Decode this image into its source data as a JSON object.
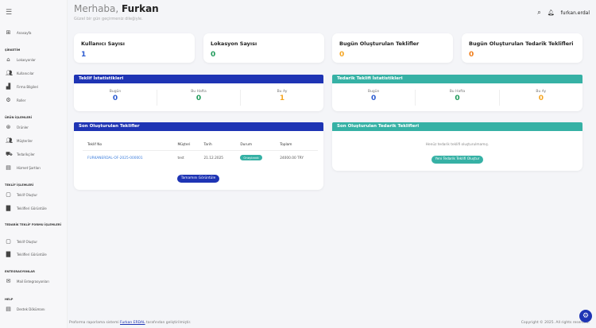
{
  "sidebar": {
    "sections": [
      {
        "title": "",
        "items": [
          {
            "label": "Anasayfa",
            "icon": "grid-icon"
          }
        ]
      },
      {
        "title": "ŞİRKETİM",
        "items": [
          {
            "label": "Lokasyonlar",
            "icon": "warehouse-icon"
          },
          {
            "label": "Kullanıcılar",
            "icon": "users-icon"
          },
          {
            "label": "Firma Bilgileri",
            "icon": "factory-icon"
          },
          {
            "label": "Roller",
            "icon": "gears-icon"
          }
        ]
      },
      {
        "title": "ÜRÜN İŞLEMLERİ",
        "items": [
          {
            "label": "Ürünler",
            "icon": "product-icon"
          },
          {
            "label": "Müşteriler",
            "icon": "users-icon"
          },
          {
            "label": "Tedarikçiler",
            "icon": "truck-icon"
          },
          {
            "label": "Hizmet Şartları",
            "icon": "document-icon"
          }
        ]
      },
      {
        "title": "TEKLİF İŞLEMLERİ",
        "items": [
          {
            "label": "Teklif Oluştur",
            "icon": "file-add-icon"
          },
          {
            "label": "Teklifleri Görüntüle",
            "icon": "files-icon"
          }
        ]
      },
      {
        "title": "TEDARİK TEKLİF FORMU İŞLEMLERİ",
        "items": [
          {
            "label": "Teklif Oluştur",
            "icon": "file-add-icon"
          },
          {
            "label": "Teklifleri Görüntüle",
            "icon": "files-icon"
          }
        ]
      },
      {
        "title": "ENTEGRASYONLAR",
        "items": [
          {
            "label": "Mail Entegrasyonları",
            "icon": "mail-icon"
          }
        ]
      },
      {
        "title": "HELP",
        "items": [
          {
            "label": "Destek Dökümanı",
            "icon": "document-icon"
          }
        ]
      }
    ]
  },
  "header": {
    "greeting": "Merhaba,",
    "name": "Furkan",
    "subtitle": "Güzel bir gün geçirmeniz dileğiyle.",
    "username": "furkan.erdal"
  },
  "stats": [
    {
      "title": "Kullanıcı Sayısı",
      "value": "1",
      "color": "#2c5bd0"
    },
    {
      "title": "Lokasyon Sayısı",
      "value": "0",
      "color": "#1f9a5a"
    },
    {
      "title": "Bugün Oluşturulan Teklifler",
      "value": "0",
      "color": "#f5a623"
    },
    {
      "title": "Bugün Oluşturulan Tedarik Teklifleri",
      "value": "0",
      "color": "#f07d1a"
    }
  ],
  "offer_stats": {
    "title": "Teklif İstatistikleri",
    "cols": [
      {
        "label": "Bugün",
        "value": "0"
      },
      {
        "label": "Bu Hafta",
        "value": "0"
      },
      {
        "label": "Bu Ay",
        "value": "1"
      }
    ]
  },
  "supply_stats": {
    "title": "Tedarik Teklifi İstatistikleri",
    "cols": [
      {
        "label": "Bugün",
        "value": "0"
      },
      {
        "label": "Bu Hafta",
        "value": "0"
      },
      {
        "label": "Bu Ay",
        "value": "0"
      }
    ]
  },
  "recent_offers": {
    "title": "Son Oluşturulan Teklifler",
    "headers": [
      "Teklif No",
      "Müşteri",
      "Tarih",
      "Durum",
      "Toplam"
    ],
    "rows": [
      {
        "no": "FURKANERDAL-OF-2025-000001",
        "customer": "test",
        "date": "21.12.2025",
        "status": "Onaylandı",
        "total": "24000.00 TRY"
      }
    ],
    "button": "Tamamını Görüntüle"
  },
  "recent_supply": {
    "title": "Son Oluşturulan Tedarik Teklifleri",
    "empty": "Henüz tedarik teklifi oluşturulmamış.",
    "button": "Yeni Tedarik Teklifi Oluştur"
  },
  "footer": {
    "left_pre": "Proforma raporlama sistemi",
    "link": "Furkan ERDAL",
    "left_post": "tarafından geliştirilmiştir.",
    "right": "Copyright © 2025. All rights reserved."
  },
  "colors": {
    "primary": "#1e34b4",
    "teal": "#36b1a5"
  }
}
